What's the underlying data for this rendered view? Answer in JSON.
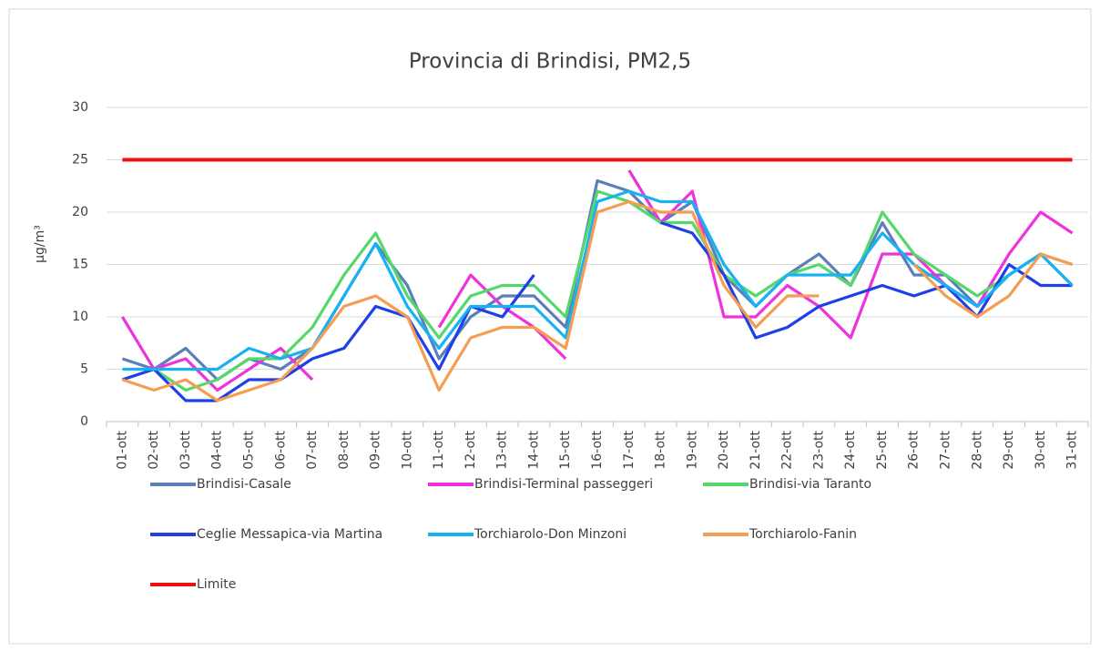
{
  "chart_data": {
    "type": "line",
    "title": "Provincia di Brindisi, PM2,5",
    "y_label": "µg/m³",
    "categories": [
      "01-ott",
      "02-ott",
      "03-ott",
      "04-ott",
      "05-ott",
      "06-ott",
      "07-ott",
      "08-ott",
      "09-ott",
      "10-ott",
      "11-ott",
      "12-ott",
      "13-ott",
      "14-ott",
      "15-ott",
      "16-ott",
      "17-ott",
      "18-ott",
      "19-ott",
      "20-ott",
      "21-ott",
      "22-ott",
      "23-ott",
      "24-ott",
      "25-ott",
      "26-ott",
      "27-ott",
      "28-ott",
      "29-ott",
      "30-ott",
      "31-ott"
    ],
    "ylim": [
      0,
      30
    ],
    "yticks": [
      0,
      5,
      10,
      15,
      20,
      25,
      30
    ],
    "grid": true,
    "series": [
      {
        "name": "Brindisi-Casale",
        "color": "#5b7fb8",
        "values": [
          6,
          5,
          7,
          4,
          6,
          5,
          7,
          12,
          17,
          13,
          6,
          10,
          12,
          12,
          9,
          23,
          22,
          19,
          21,
          14,
          11,
          14,
          16,
          13,
          19,
          14,
          14,
          11,
          14,
          16,
          13
        ]
      },
      {
        "name": "Brindisi-Terminal passeggeri",
        "color": "#ee33dd",
        "values": [
          10,
          5,
          6,
          3,
          5,
          7,
          4,
          null,
          null,
          null,
          9,
          14,
          11,
          9,
          6,
          null,
          24,
          19,
          22,
          10,
          10,
          13,
          11,
          8,
          16,
          16,
          13,
          11,
          16,
          20,
          18
        ]
      },
      {
        "name": "Brindisi-via Taranto",
        "color": "#55d86a",
        "values": [
          4,
          5,
          3,
          4,
          6,
          6,
          9,
          14,
          18,
          12,
          8,
          12,
          13,
          13,
          10,
          22,
          21,
          19,
          19,
          14,
          12,
          14,
          15,
          13,
          20,
          16,
          14,
          12,
          14,
          16,
          15
        ]
      },
      {
        "name": "Ceglie Messapica-via Martina",
        "color": "#1f40e6",
        "values": [
          4,
          5,
          2,
          2,
          4,
          4,
          6,
          7,
          11,
          10,
          5,
          11,
          10,
          14,
          null,
          null,
          null,
          19,
          18,
          14,
          8,
          9,
          11,
          12,
          13,
          12,
          13,
          10,
          15,
          13,
          13
        ]
      },
      {
        "name": "Torchiarolo-Don Minzoni",
        "color": "#18b2f2",
        "values": [
          5,
          5,
          5,
          5,
          7,
          6,
          7,
          12,
          17,
          11,
          7,
          11,
          11,
          11,
          8,
          21,
          22,
          21,
          21,
          15,
          11,
          14,
          14,
          14,
          18,
          15,
          13,
          11,
          14,
          16,
          13
        ]
      },
      {
        "name": "Torchiarolo-Fanin",
        "color": "#f59d52",
        "values": [
          4,
          3,
          4,
          2,
          3,
          4,
          7,
          11,
          12,
          10,
          3,
          8,
          9,
          9,
          7,
          20,
          21,
          20,
          20,
          13,
          9,
          12,
          12,
          null,
          null,
          15,
          12,
          10,
          12,
          16,
          15
        ]
      },
      {
        "name": "Limite",
        "color": "#ee1111",
        "values": [
          25,
          25,
          25,
          25,
          25,
          25,
          25,
          25,
          25,
          25,
          25,
          25,
          25,
          25,
          25,
          25,
          25,
          25,
          25,
          25,
          25,
          25,
          25,
          25,
          25,
          25,
          25,
          25,
          25,
          25,
          25
        ]
      }
    ]
  }
}
